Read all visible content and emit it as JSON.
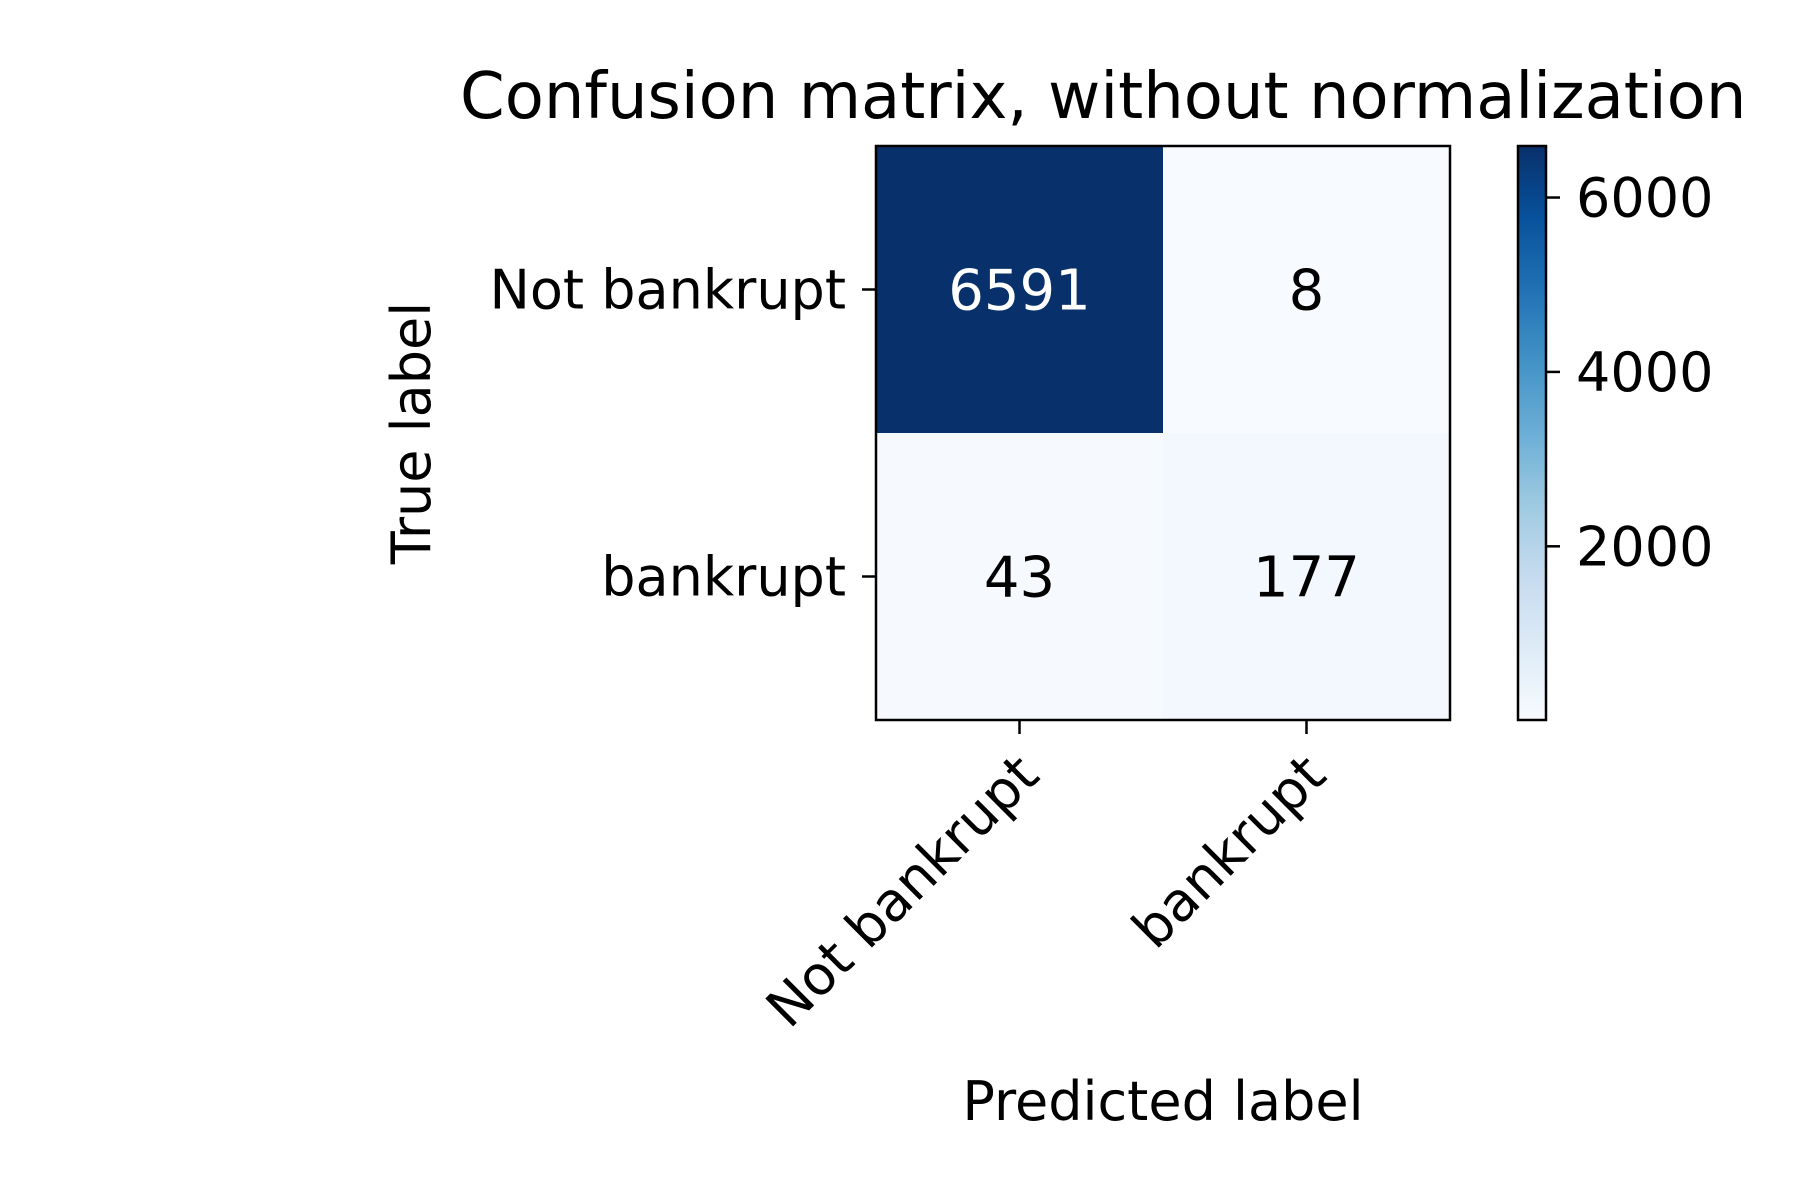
{
  "chart_data": {
    "type": "heatmap",
    "title": "Confusion matrix, without normalization",
    "xlabel": "Predicted label",
    "ylabel": "True label",
    "x_categories": [
      "Not bankrupt",
      "bankrupt"
    ],
    "y_categories": [
      "Not bankrupt",
      "bankrupt"
    ],
    "matrix": [
      [
        6591,
        8
      ],
      [
        43,
        177
      ]
    ],
    "colormap": "Blues",
    "colorbar": {
      "ticks": [
        2000,
        4000,
        6000
      ],
      "range": [
        8,
        6591
      ]
    },
    "colors": {
      "cmap_low": "#f7fbff",
      "cmap_high": "#08306b",
      "text_on_dark": "#ffffff",
      "text_on_light": "#000000"
    }
  }
}
